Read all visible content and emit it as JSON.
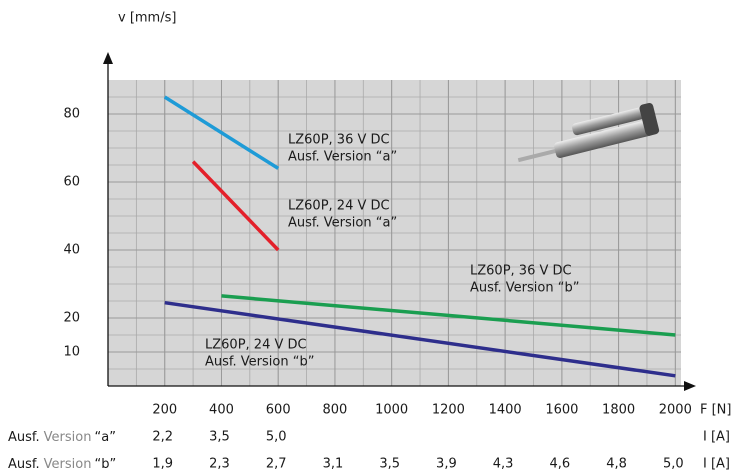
{
  "chart_data": {
    "type": "line",
    "y_label": "v [mm/s]",
    "x_label": "F [N]",
    "xlim": [
      0,
      2020
    ],
    "ylim": [
      0,
      90
    ],
    "xticks": [
      200,
      400,
      600,
      800,
      1000,
      1200,
      1400,
      1600,
      1800,
      2000
    ],
    "yticks": [
      10,
      20,
      40,
      60,
      80
    ],
    "grid": true,
    "series": [
      {
        "name": "LZ60P, 36 V DC",
        "subname": "Ausf. Version “a”",
        "color": "#1e9bd7",
        "x": [
          200,
          600
        ],
        "values": [
          85,
          64
        ]
      },
      {
        "name": "LZ60P, 24 V DC",
        "subname": "Ausf. Version “a”",
        "color": "#e3202a",
        "x": [
          300,
          600
        ],
        "values": [
          66,
          40
        ]
      },
      {
        "name": "LZ60P, 36 V DC",
        "subname": "Ausf. Version “b”",
        "color": "#1a9e50",
        "x": [
          400,
          2000
        ],
        "values": [
          26.5,
          15
        ]
      },
      {
        "name": "LZ60P, 24 V DC",
        "subname": "Ausf. Version “b”",
        "color": "#2e2e8c",
        "x": [
          200,
          2000
        ],
        "values": [
          24.5,
          3
        ]
      }
    ],
    "current_rows": [
      {
        "label": [
          "Ausf.",
          "Version",
          "“a”"
        ],
        "values": [
          "2,2",
          "3,5",
          "5,0"
        ],
        "unit": "I [A]"
      },
      {
        "label": [
          "Ausf.",
          "Version",
          "“b”"
        ],
        "values": [
          "1,9",
          "2,3",
          "2,7",
          "3,1",
          "3,5",
          "3,9",
          "4,3",
          "4,6",
          "4,8",
          "5,0"
        ],
        "unit": "I [A]"
      }
    ]
  }
}
